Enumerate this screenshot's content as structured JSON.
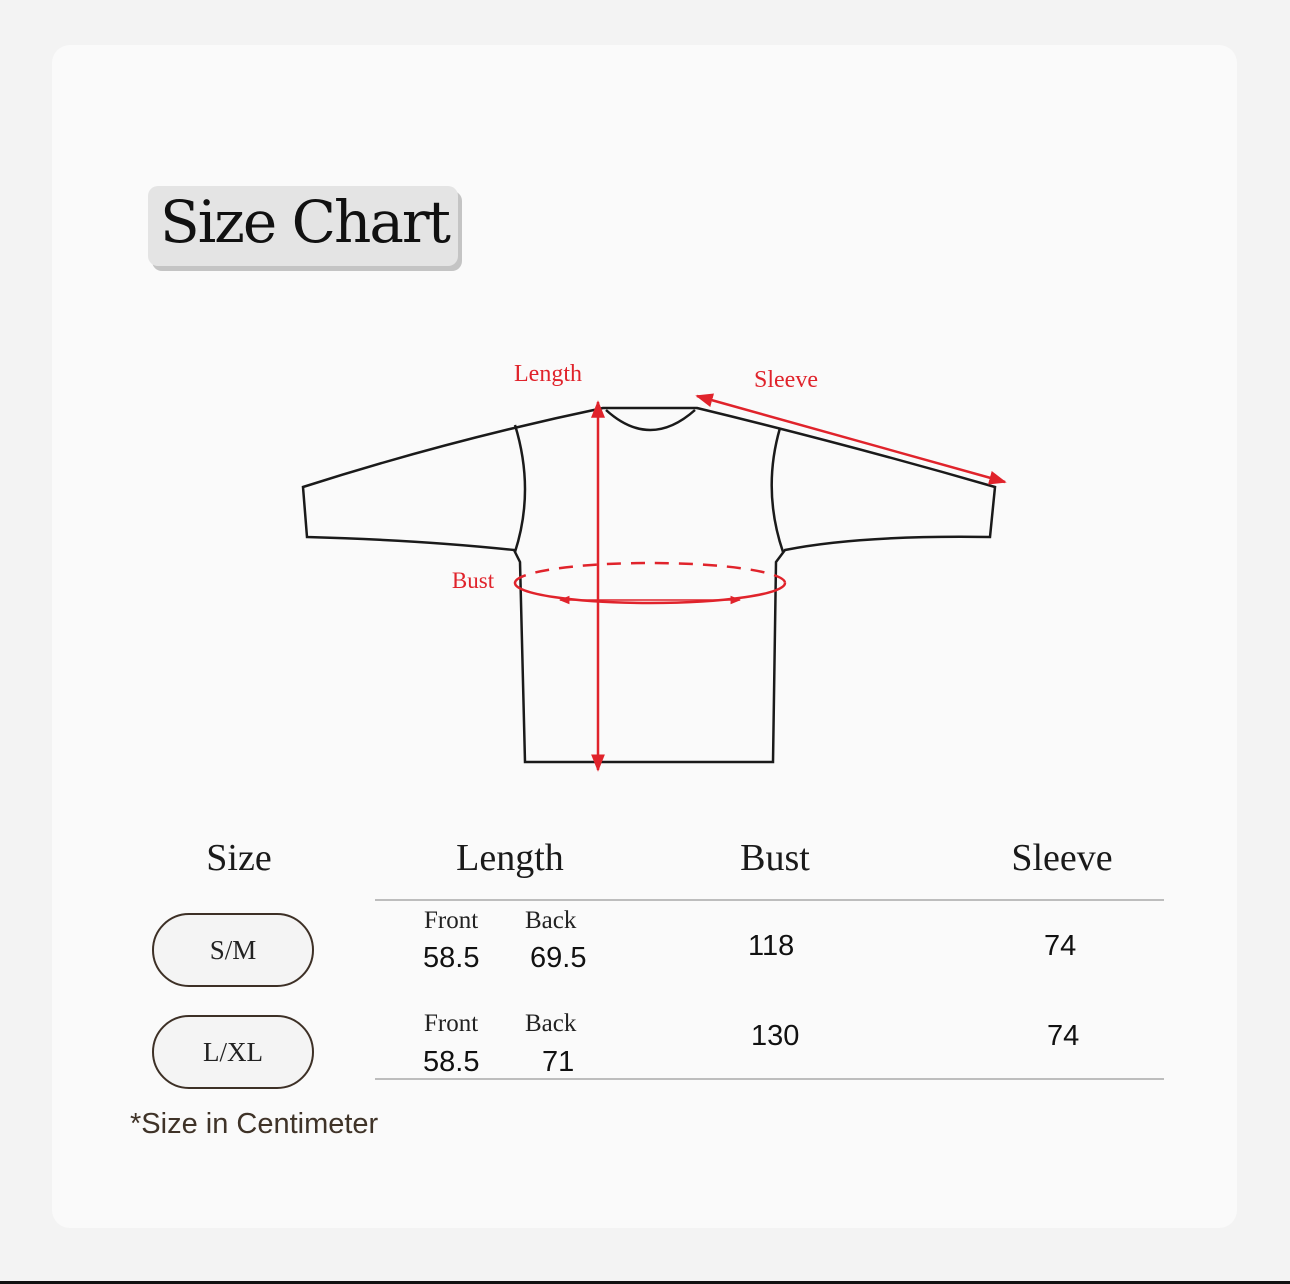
{
  "title": "Size Chart",
  "diagram": {
    "length_label": "Length",
    "sleeve_label": "Sleeve",
    "bust_label": "Bust",
    "accent_color": "#e0232b"
  },
  "table": {
    "headers": [
      "Size",
      "Length",
      "Bust",
      "Sleeve"
    ],
    "front_label": "Front",
    "back_label": "Back",
    "rows": [
      {
        "size": "S/M",
        "front": "58.5",
        "back": "69.5",
        "bust": "118",
        "sleeve": "74"
      },
      {
        "size": "L/XL",
        "front": "58.5",
        "back": "71",
        "bust": "130",
        "sleeve": "74"
      }
    ]
  },
  "note": "*Size in Centimeter"
}
